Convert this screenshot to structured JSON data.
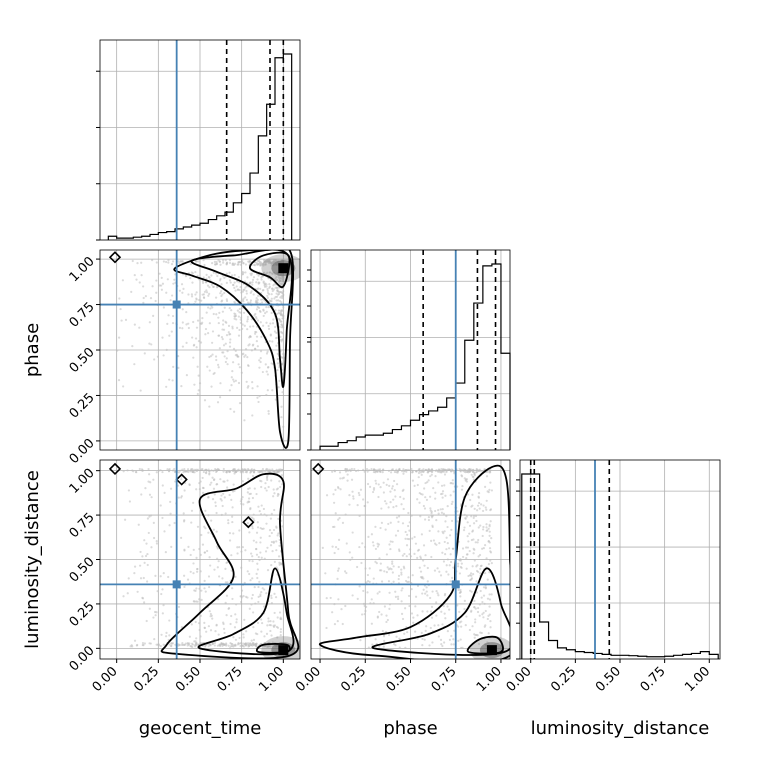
{
  "chart_data": {
    "type": "corner",
    "parameters": [
      {
        "key": "geocent_time",
        "label": "geocent_time",
        "range": [
          -0.1,
          1.1
        ],
        "truth": 0.36,
        "quantiles": [
          0.66,
          0.92,
          1.0
        ]
      },
      {
        "key": "phase",
        "label": "phase",
        "range": [
          -0.05,
          1.05
        ],
        "truth": 0.75,
        "quantiles": [
          0.57,
          0.87,
          0.97
        ]
      },
      {
        "key": "luminosity_distance",
        "label": "luminosity_distance",
        "range": [
          -0.06,
          1.06
        ],
        "truth": 0.36,
        "quantiles": [
          0.0,
          0.02,
          0.44
        ]
      }
    ],
    "ticks": [
      0.0,
      0.25,
      0.5,
      0.75,
      1.0
    ],
    "tick_labels": [
      "0.00",
      "0.25",
      "0.50",
      "0.75",
      "1.00"
    ],
    "grid": true,
    "truth_color": "#4682b4",
    "line_color": "#000000",
    "scatter_color": "#bdbdbd",
    "histograms": [
      {
        "param": "geocent_time",
        "bin_edges": [
          -0.05,
          0.0,
          0.05,
          0.1,
          0.15,
          0.2,
          0.25,
          0.3,
          0.35,
          0.4,
          0.45,
          0.5,
          0.55,
          0.6,
          0.65,
          0.7,
          0.75,
          0.8,
          0.85,
          0.9,
          0.95,
          1.0,
          1.05
        ],
        "counts": [
          0.02,
          0.01,
          0.01,
          0.015,
          0.02,
          0.03,
          0.04,
          0.045,
          0.06,
          0.07,
          0.08,
          0.09,
          0.11,
          0.13,
          0.15,
          0.2,
          0.25,
          0.36,
          0.56,
          0.73,
          0.98,
          1.0
        ]
      },
      {
        "param": "phase",
        "bin_edges": [
          0.0,
          0.05,
          0.1,
          0.15,
          0.2,
          0.25,
          0.3,
          0.35,
          0.4,
          0.45,
          0.5,
          0.55,
          0.6,
          0.65,
          0.7,
          0.75,
          0.8,
          0.85,
          0.9,
          0.95,
          1.0,
          1.05
        ],
        "counts": [
          0.02,
          0.02,
          0.04,
          0.05,
          0.07,
          0.08,
          0.08,
          0.09,
          0.11,
          0.13,
          0.16,
          0.19,
          0.21,
          0.23,
          0.28,
          0.36,
          0.59,
          0.79,
          0.99,
          1.0,
          0.52
        ]
      },
      {
        "param": "luminosity_distance",
        "bin_edges": [
          -0.05,
          0.0,
          0.05,
          0.1,
          0.15,
          0.2,
          0.25,
          0.3,
          0.35,
          0.4,
          0.45,
          0.5,
          0.55,
          0.6,
          0.65,
          0.7,
          0.75,
          0.8,
          0.85,
          0.9,
          0.95,
          1.0,
          1.05
        ],
        "counts": [
          1.0,
          1.0,
          0.2,
          0.1,
          0.06,
          0.05,
          0.04,
          0.035,
          0.03,
          0.025,
          0.02,
          0.02,
          0.018,
          0.015,
          0.012,
          0.012,
          0.015,
          0.02,
          0.025,
          0.03,
          0.04,
          0.025
        ]
      }
    ],
    "contour_panels": [
      {
        "x": "geocent_time",
        "y": "phase",
        "peak": [
          1.0,
          0.95
        ],
        "levels": [
          [
            [
              0.35,
              0.95
            ],
            [
              0.6,
              1.03
            ],
            [
              0.9,
              1.05
            ],
            [
              1.05,
              1.02
            ],
            [
              1.04,
              0.55
            ],
            [
              1.03,
              0.0
            ],
            [
              0.98,
              0.05
            ],
            [
              0.95,
              0.4
            ],
            [
              0.9,
              0.55
            ],
            [
              0.78,
              0.72
            ],
            [
              0.62,
              0.85
            ],
            [
              0.45,
              0.91
            ]
          ],
          [
            [
              0.45,
              0.99
            ],
            [
              0.7,
              1.02
            ],
            [
              1.03,
              1.02
            ],
            [
              1.02,
              0.6
            ],
            [
              1.0,
              0.3
            ],
            [
              0.98,
              0.45
            ],
            [
              0.95,
              0.7
            ],
            [
              0.8,
              0.85
            ],
            [
              0.6,
              0.93
            ]
          ],
          [
            [
              0.8,
              0.95
            ],
            [
              0.88,
              1.02
            ],
            [
              1.03,
              1.02
            ],
            [
              1.0,
              0.85
            ],
            [
              0.92,
              0.9
            ]
          ]
        ],
        "islands": [
          [
            -0.01,
            1.01
          ]
        ]
      },
      {
        "x": "geocent_time",
        "y": "luminosity_distance",
        "peak": [
          1.0,
          -0.01
        ],
        "levels": [
          [
            [
              0.3,
              0.02
            ],
            [
              0.35,
              -0.03
            ],
            [
              1.04,
              -0.04
            ],
            [
              1.03,
              0.2
            ],
            [
              0.98,
              0.7
            ],
            [
              1.0,
              0.94
            ],
            [
              0.88,
              0.98
            ],
            [
              0.72,
              0.9
            ],
            [
              0.5,
              0.84
            ],
            [
              0.6,
              0.6
            ],
            [
              0.7,
              0.4
            ],
            [
              0.5,
              0.2
            ]
          ],
          [
            [
              0.5,
              0.0
            ],
            [
              1.02,
              -0.02
            ],
            [
              1.02,
              0.2
            ],
            [
              0.95,
              0.45
            ],
            [
              0.88,
              0.2
            ],
            [
              0.7,
              0.08
            ]
          ],
          [
            [
              0.85,
              -0.02
            ],
            [
              1.02,
              -0.02
            ],
            [
              1.02,
              0.02
            ],
            [
              0.88,
              0.02
            ]
          ]
        ],
        "islands": [
          [
            -0.01,
            1.01
          ],
          [
            0.39,
            0.95
          ],
          [
            0.79,
            0.71
          ]
        ]
      },
      {
        "x": "phase",
        "y": "luminosity_distance",
        "peak": [
          0.95,
          -0.01
        ],
        "levels": [
          [
            [
              0.0,
              0.02
            ],
            [
              0.3,
              -0.04
            ],
            [
              1.05,
              -0.04
            ],
            [
              1.05,
              0.5
            ],
            [
              1.03,
              0.95
            ],
            [
              0.95,
              1.02
            ],
            [
              0.8,
              0.85
            ],
            [
              0.75,
              0.5
            ],
            [
              0.72,
              0.3
            ],
            [
              0.5,
              0.12
            ],
            [
              0.2,
              0.06
            ]
          ],
          [
            [
              0.3,
              0.0
            ],
            [
              1.02,
              -0.02
            ],
            [
              1.0,
              0.25
            ],
            [
              0.92,
              0.45
            ],
            [
              0.8,
              0.2
            ],
            [
              0.6,
              0.08
            ]
          ],
          [
            [
              0.82,
              -0.02
            ],
            [
              1.0,
              -0.02
            ],
            [
              0.98,
              0.06
            ],
            [
              0.88,
              0.05
            ]
          ]
        ],
        "islands": [
          [
            -0.01,
            1.01
          ]
        ]
      }
    ]
  }
}
